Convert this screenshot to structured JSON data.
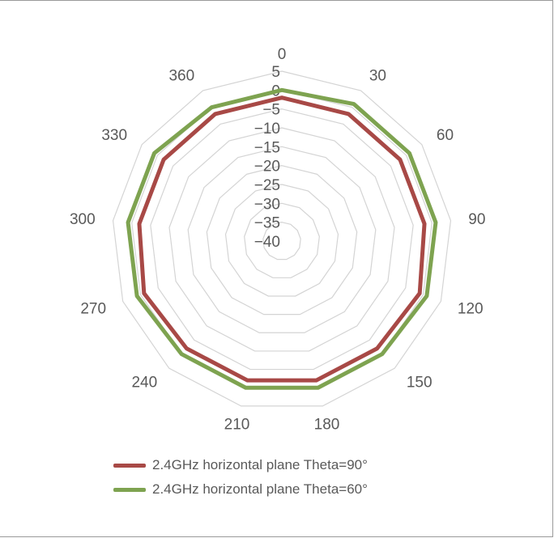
{
  "chart_data": {
    "type": "radar",
    "categories": [
      "0",
      "30",
      "60",
      "90",
      "120",
      "150",
      "180",
      "210",
      "240",
      "270",
      "300",
      "330",
      "360"
    ],
    "radial_ticks": [
      "5",
      "0",
      "−5",
      "−10",
      "−15",
      "−20",
      "−25",
      "−30",
      "−35",
      "−40"
    ],
    "rlim": [
      -40,
      5
    ],
    "grid": true,
    "legend_position": "bottom",
    "series": [
      {
        "name": "2.4GHz horizontal plane Theta=90°",
        "color": "#a84946",
        "values": [
          -2,
          -2,
          -2,
          -2,
          -1,
          -2,
          -2,
          -2,
          -2,
          -1,
          -2,
          -2,
          -2
        ]
      },
      {
        "name": "2.4GHz horizontal plane Theta=60°",
        "color": "#7ea350",
        "values": [
          0,
          1,
          1,
          1,
          1,
          0,
          0,
          0,
          0,
          1,
          1,
          1,
          0
        ]
      }
    ]
  }
}
